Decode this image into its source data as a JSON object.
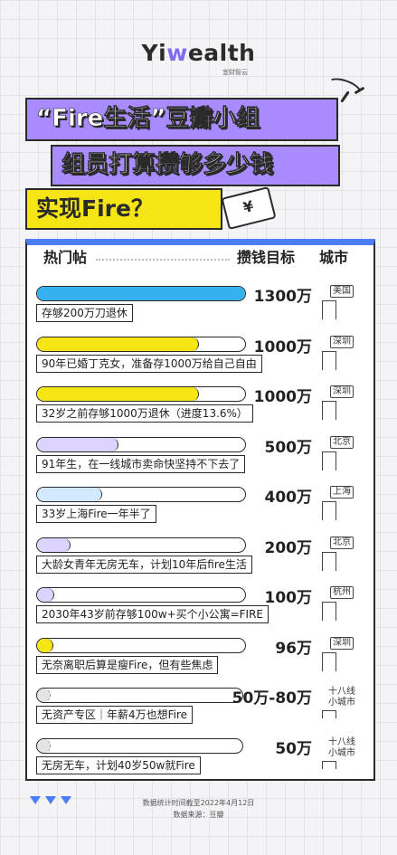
{
  "brand": {
    "logo": "Yiwealth",
    "logo_pre": "Yi",
    "logo_w": "w",
    "logo_post": "ealth",
    "logo_sub": "宜财智云"
  },
  "title": {
    "line1": "“Fire生活”豆瓣小组",
    "line2": "组员打算攒够多少钱",
    "line3": "实现Fire？",
    "badge": "¥"
  },
  "headers": {
    "post": "热门帖",
    "goal": "攒钱目标",
    "city": "城市"
  },
  "chart_data": {
    "type": "bar",
    "orientation": "horizontal",
    "unit": "万",
    "categories": [
      "存够200万刀退休",
      "90年已婚丁克女，准备存1000万给自己自由",
      "32岁之前存够1000万退休（进度13.6%）",
      "91年生，在一线城市卖命快坚持不下去了",
      "33岁上海Fire一年半了",
      "大龄女青年无房无车，计划10年后fire生活",
      "2030年43岁前存够100w+买个小公寓=FIRE",
      "无奈离职后算是瘦Fire，但有些焦虑",
      "无资产专区｜年薪4万也想Fire",
      "无房无车，计划40岁50w就Fire"
    ],
    "values": [
      1300,
      1000,
      1000,
      500,
      400,
      200,
      100,
      96,
      80,
      50
    ],
    "value_labels": [
      "1300万",
      "1000万",
      "1000万",
      "500万",
      "400万",
      "200万",
      "100万",
      "96万",
      "50万-80万",
      "50万"
    ],
    "cities": [
      "美国",
      "深圳",
      "深圳",
      "北京",
      "上海",
      "北京",
      "杭州",
      "深圳",
      "十八线小城市",
      "十八线小城市"
    ],
    "city_lines": [
      [
        "美国"
      ],
      [
        "深圳"
      ],
      [
        "深圳"
      ],
      [
        "北京"
      ],
      [
        "上海"
      ],
      [
        "北京"
      ],
      [
        "杭州"
      ],
      [
        "深圳"
      ],
      [
        "十八线",
        "小城市"
      ],
      [
        "十八线",
        "小城市"
      ]
    ],
    "colors": [
      "#35b1ef",
      "#f6e514",
      "#f6e514",
      "#ddd3ff",
      "#d3e9ff",
      "#ddd3ff",
      "#ddd3ff",
      "#f6e514",
      "#e4e4e4",
      "#e4e4e4"
    ],
    "xlim": [
      0,
      1300
    ]
  },
  "footer": {
    "note": "数据统计时间截至2022年4月12日",
    "source": "数据来源：豆瓣"
  }
}
